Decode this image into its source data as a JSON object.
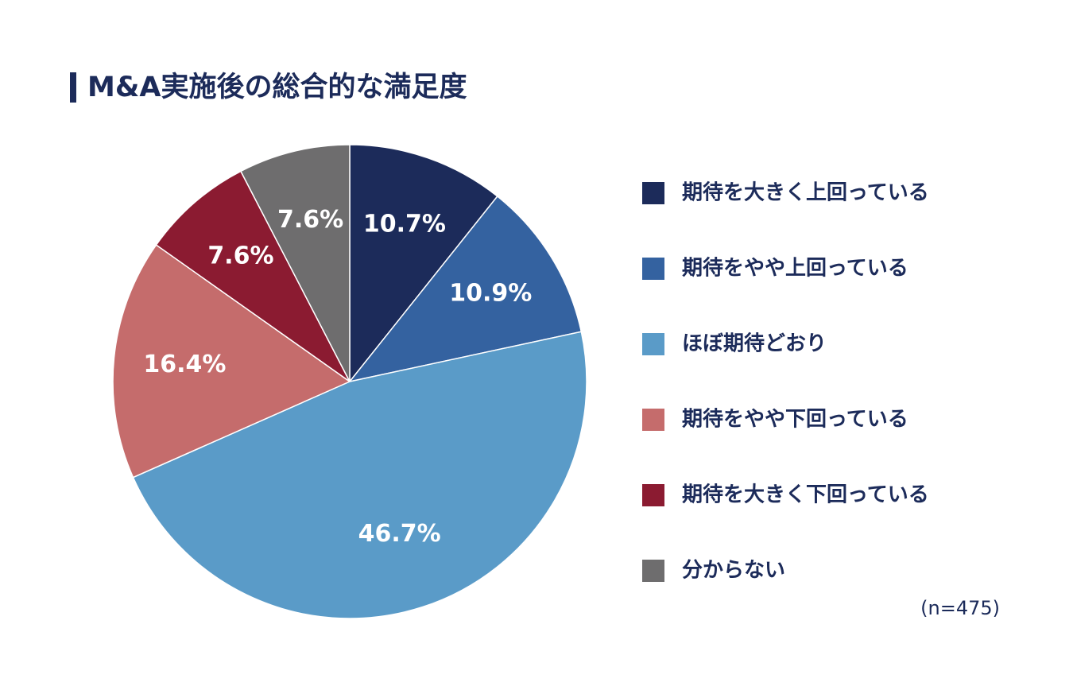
{
  "chart_data": {
    "type": "pie",
    "title": "M&A実施後の総合的な満足度",
    "categories": [
      "期待を大きく上回っている",
      "期待をやや上回っている",
      "ほぼ期待どおり",
      "期待をやや下回っている",
      "期待を大きく下回っている",
      "分からない"
    ],
    "values": [
      10.7,
      10.9,
      46.7,
      16.4,
      7.6,
      7.6
    ],
    "value_labels": [
      "10.7%",
      "10.9%",
      "46.7%",
      "16.4%",
      "7.6%",
      "7.6%"
    ],
    "colors": [
      "#1c2b5a",
      "#3462a0",
      "#5a9bc8",
      "#c56c6c",
      "#8b1b31",
      "#6e6d6e"
    ],
    "annotation": "(n=475)"
  }
}
